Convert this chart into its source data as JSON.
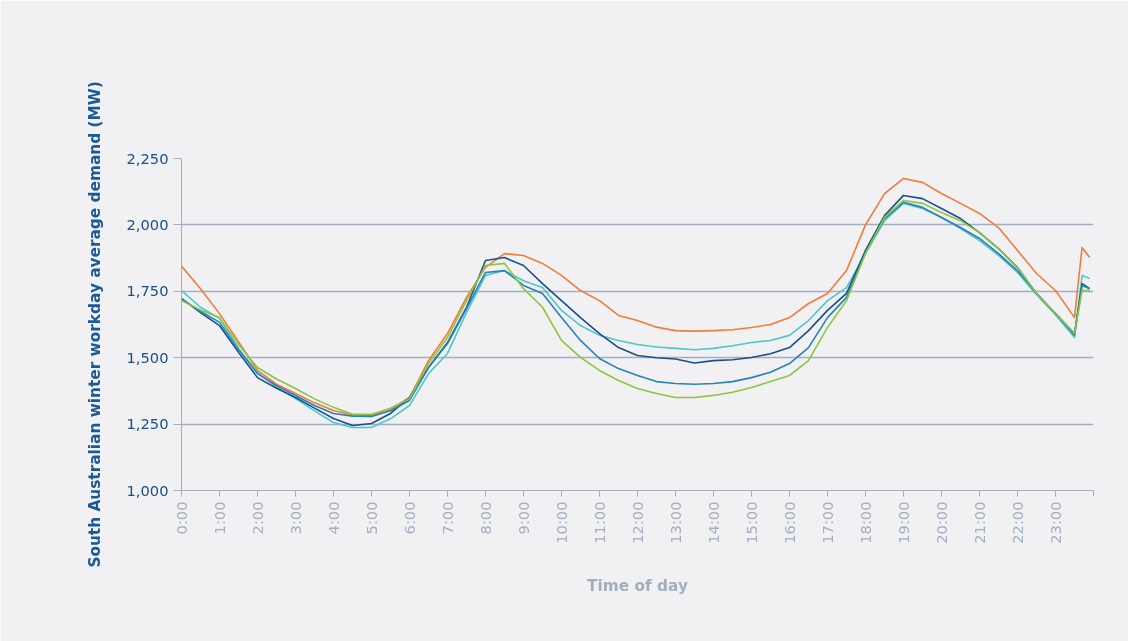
{
  "chart_data": {
    "type": "line",
    "xlabel": "Time of day",
    "ylabel": "South Australian winter workday average demand (MW)",
    "x": [
      0,
      0.5,
      1,
      1.5,
      2,
      2.5,
      3,
      3.5,
      4,
      4.5,
      5,
      5.5,
      6,
      6.5,
      7,
      7.5,
      8,
      8.5,
      9,
      9.5,
      10,
      10.5,
      11,
      11.5,
      12,
      12.5,
      13,
      13.5,
      14,
      14.5,
      15,
      15.5,
      16,
      16.5,
      17,
      17.5,
      18,
      18.5,
      19,
      19.5,
      20,
      20.5,
      21,
      21.5,
      22,
      22.5,
      23,
      23.5,
      23.7,
      23.9
    ],
    "series": [
      {
        "color": "#f47b3a",
        "values": [
          1845,
          1760,
          1666,
          1560,
          1452,
          1400,
          1365,
          1330,
          1301,
          1284,
          1283,
          1305,
          1350,
          1489,
          1591,
          1727,
          1840,
          1892,
          1885,
          1855,
          1810,
          1753,
          1715,
          1659,
          1640,
          1615,
          1602,
          1600,
          1602,
          1605,
          1614,
          1625,
          1651,
          1704,
          1742,
          1828,
          2000,
          2118,
          2175,
          2160,
          2118,
          2081,
          2043,
          1990,
          1904,
          1817,
          1753,
          1651,
          1915,
          1877
        ]
      },
      {
        "color": "#4ec8c8",
        "values": [
          1753,
          1690,
          1648,
          1535,
          1444,
          1390,
          1346,
          1300,
          1256,
          1237,
          1237,
          1270,
          1320,
          1440,
          1516,
          1670,
          1810,
          1828,
          1790,
          1764,
          1678,
          1621,
          1584,
          1565,
          1550,
          1540,
          1535,
          1530,
          1535,
          1545,
          1557,
          1565,
          1584,
          1640,
          1715,
          1764,
          1892,
          2016,
          2081,
          2062,
          2028,
          1986,
          1941,
          1885,
          1821,
          1738,
          1662,
          1576,
          1810,
          1798
        ]
      },
      {
        "color": "#1b4f8a",
        "values": [
          1723,
          1670,
          1621,
          1520,
          1425,
          1385,
          1350,
          1310,
          1271,
          1245,
          1252,
          1290,
          1350,
          1463,
          1557,
          1689,
          1866,
          1877,
          1847,
          1779,
          1715,
          1651,
          1591,
          1538,
          1508,
          1500,
          1495,
          1480,
          1489,
          1492,
          1501,
          1515,
          1538,
          1602,
          1678,
          1742,
          1904,
          2035,
          2111,
          2099,
          2062,
          2024,
          1971,
          1911,
          1840,
          1742,
          1666,
          1591,
          1779,
          1760
        ]
      },
      {
        "color": "#2a80b9",
        "values": [
          1720,
          1675,
          1633,
          1530,
          1440,
          1395,
          1358,
          1320,
          1290,
          1280,
          1279,
          1300,
          1339,
          1463,
          1553,
          1685,
          1821,
          1828,
          1772,
          1742,
          1651,
          1565,
          1497,
          1459,
          1433,
          1410,
          1403,
          1400,
          1403,
          1410,
          1425,
          1445,
          1478,
          1538,
          1651,
          1727,
          1896,
          2024,
          2085,
          2066,
          2028,
          1990,
          1949,
          1892,
          1828,
          1742,
          1666,
          1585,
          1772,
          1760
        ]
      },
      {
        "color": "#8cc63f",
        "values": [
          1715,
          1680,
          1651,
          1550,
          1463,
          1420,
          1384,
          1345,
          1313,
          1287,
          1287,
          1310,
          1346,
          1478,
          1576,
          1715,
          1847,
          1855,
          1760,
          1690,
          1565,
          1501,
          1452,
          1414,
          1384,
          1365,
          1350,
          1350,
          1358,
          1370,
          1388,
          1410,
          1433,
          1489,
          1614,
          1715,
          1892,
          2028,
          2092,
          2081,
          2047,
          2016,
          1971,
          1911,
          1840,
          1742,
          1666,
          1591,
          1753,
          1753
        ]
      }
    ],
    "xlim": [
      0,
      24
    ],
    "xticks": [
      {
        "value": 0,
        "label": "0:00"
      },
      {
        "value": 1,
        "label": "1:00"
      },
      {
        "value": 2,
        "label": "2:00"
      },
      {
        "value": 3,
        "label": "3:00"
      },
      {
        "value": 4,
        "label": "4:00"
      },
      {
        "value": 5,
        "label": "5:00"
      },
      {
        "value": 6,
        "label": "6:00"
      },
      {
        "value": 7,
        "label": "7:00"
      },
      {
        "value": 8,
        "label": "8:00"
      },
      {
        "value": 9,
        "label": "9:00"
      },
      {
        "value": 10,
        "label": "10:00"
      },
      {
        "value": 11,
        "label": "11:00"
      },
      {
        "value": 12,
        "label": "12:00"
      },
      {
        "value": 13,
        "label": "13:00"
      },
      {
        "value": 14,
        "label": "14:00"
      },
      {
        "value": 15,
        "label": "15:00"
      },
      {
        "value": 16,
        "label": "16:00"
      },
      {
        "value": 17,
        "label": "17:00"
      },
      {
        "value": 18,
        "label": "18:00"
      },
      {
        "value": 19,
        "label": "19:00"
      },
      {
        "value": 20,
        "label": "20:00"
      },
      {
        "value": 21,
        "label": "21:00"
      },
      {
        "value": 22,
        "label": "22:00"
      },
      {
        "value": 23,
        "label": "23:00"
      },
      {
        "value": 24,
        "label": null
      }
    ],
    "ylim": [
      1000,
      2250
    ],
    "yticks": [
      {
        "value": 1000,
        "label": "1,000"
      },
      {
        "value": 1250,
        "label": "1,250"
      },
      {
        "value": 1500,
        "label": "1,500"
      },
      {
        "value": 1750,
        "label": "1,750"
      },
      {
        "value": 2000,
        "label": "2,000"
      },
      {
        "value": 2250,
        "label": "2,250"
      }
    ],
    "grid": "y",
    "line_style": "solid"
  }
}
